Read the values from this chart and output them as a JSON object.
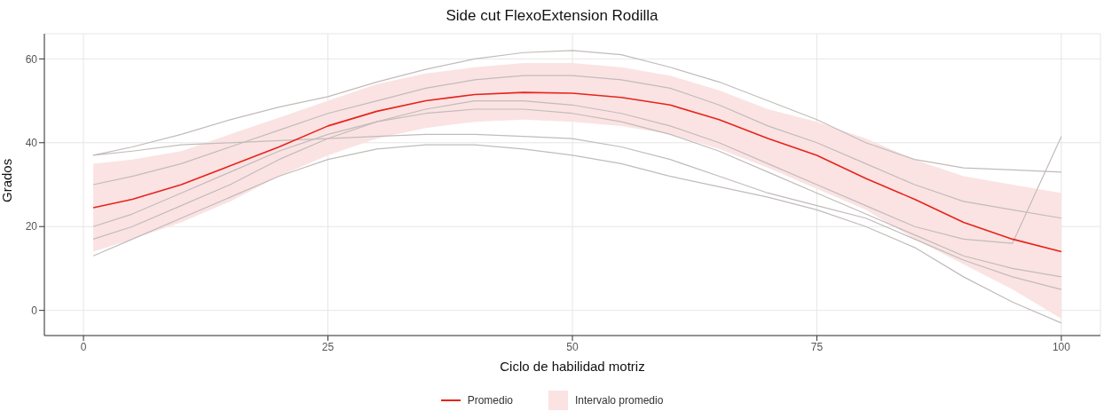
{
  "chart_data": {
    "type": "line",
    "title": "Side cut FlexoExtension Rodilla",
    "xlabel": "Ciclo de habilidad motriz",
    "ylabel": "Grados",
    "x": [
      1,
      5,
      10,
      15,
      20,
      25,
      30,
      35,
      40,
      45,
      50,
      55,
      60,
      65,
      70,
      75,
      80,
      85,
      90,
      95,
      100
    ],
    "xlim": [
      -4,
      104
    ],
    "xticks": [
      0,
      25,
      50,
      75,
      100
    ],
    "ylim": [
      -6,
      66
    ],
    "yticks": [
      0,
      20,
      40,
      60
    ],
    "grid": true,
    "legend": "bottom",
    "marker": "none",
    "series": [
      {
        "name": "Intervalo promedio",
        "color": "#fbe3e3",
        "values": [
          null,
          null,
          null,
          null,
          null,
          null,
          null,
          null,
          null,
          null,
          null,
          null,
          null,
          null,
          null,
          null,
          null,
          null,
          null,
          null,
          null
        ],
        "lower": [
          14,
          17,
          21,
          26,
          32,
          37,
          41,
          43.5,
          45,
          45.5,
          45,
          44,
          42,
          38.5,
          34,
          29,
          24,
          17,
          11,
          5,
          -2
        ],
        "upper": [
          35,
          36,
          38,
          42,
          46,
          50,
          54,
          56.5,
          58,
          59,
          59,
          58,
          56,
          52.5,
          48,
          45,
          41,
          36,
          32,
          30,
          28
        ]
      },
      {
        "color": "#c2bbbb",
        "values": [
          37,
          39,
          42,
          45.5,
          48.5,
          51,
          54.5,
          57.5,
          60,
          61.5,
          62,
          61,
          58,
          54.5,
          50,
          45.5,
          40,
          36,
          34,
          33.5,
          33
        ]
      },
      {
        "color": "#c2bbbb",
        "values": [
          13,
          17,
          22,
          27,
          32,
          36,
          38.5,
          39.5,
          39.5,
          38.5,
          37,
          35,
          32,
          29.5,
          27,
          24,
          20,
          15,
          8,
          2,
          -3
        ]
      },
      {
        "color": "#c2bbbb",
        "values": [
          37,
          38,
          39.5,
          40,
          40.5,
          41,
          41.5,
          42,
          42,
          41.5,
          41,
          39,
          36,
          32,
          28,
          25,
          22,
          17,
          12,
          8,
          5
        ]
      },
      {
        "color": "#c2bbbb",
        "values": [
          17,
          20,
          25,
          30,
          36,
          41,
          45,
          48,
          50,
          50,
          49,
          47,
          44,
          40,
          35,
          30,
          25,
          20,
          17,
          16,
          41.5
        ]
      },
      {
        "color": "#c2bbbb",
        "values": [
          30,
          32,
          35,
          39,
          43,
          47,
          50,
          53,
          55,
          56,
          56,
          55,
          53,
          49,
          44,
          40,
          35,
          30,
          26,
          24,
          22
        ]
      },
      {
        "color": "#c2bbbb",
        "values": [
          20,
          23,
          28,
          33,
          38,
          42,
          45,
          47,
          48,
          48,
          47,
          45,
          42,
          38,
          33,
          28,
          23,
          18,
          13,
          10,
          8
        ]
      },
      {
        "name": "Promedio",
        "color": "#e8231a",
        "values": [
          24.5,
          26.5,
          30,
          34.5,
          39,
          44,
          47.5,
          50,
          51.5,
          52,
          51.8,
          50.8,
          49,
          45.5,
          41,
          37,
          31.5,
          26.5,
          21,
          17,
          14
        ]
      }
    ]
  }
}
